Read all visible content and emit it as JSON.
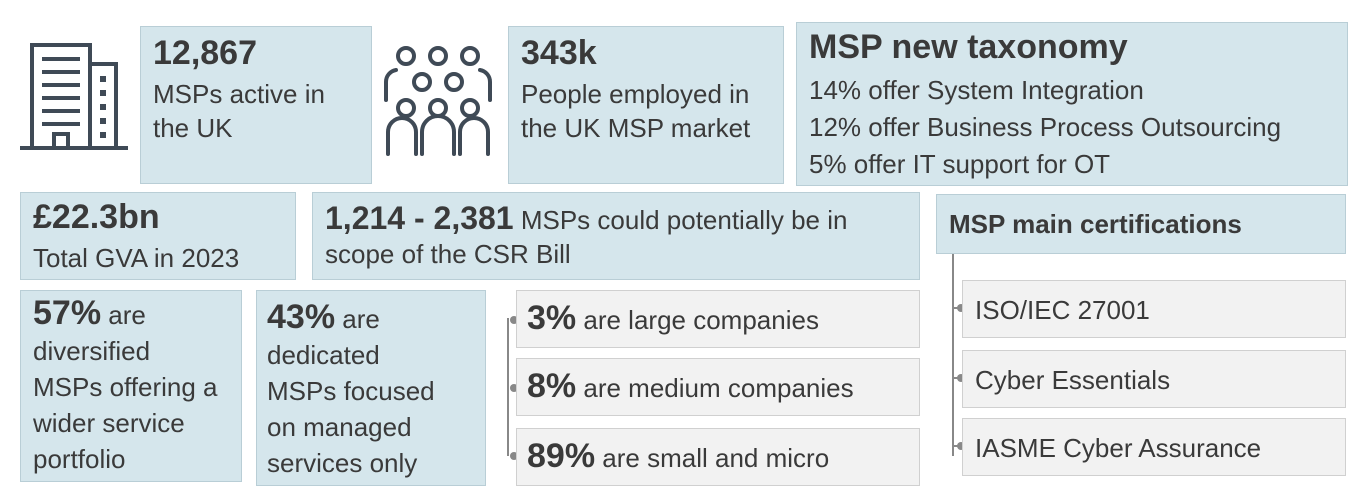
{
  "stat_mspsactive": {
    "value": "12,867",
    "line1": "MSPs active in",
    "line2": "the UK"
  },
  "stat_people": {
    "value": "343k",
    "line1": "People employed in",
    "line2": "the UK MSP market"
  },
  "taxonomy": {
    "title": "MSP new taxonomy",
    "items": [
      "14% offer System Integration",
      "12% offer Business Process Outsourcing",
      "5% offer IT support for OT"
    ]
  },
  "gva": {
    "value": "£22.3bn",
    "label": "Total GVA in 2023"
  },
  "csr": {
    "value": "1,214 - 2,381",
    "text1": "MSPs could potentially be in",
    "text2": "scope of the CSR Bill"
  },
  "certifications": {
    "title": "MSP main certifications",
    "items": [
      "ISO/IEC 27001",
      "Cyber Essentials",
      "IASME Cyber Assurance"
    ]
  },
  "diversified": {
    "value": "57%",
    "first": "are",
    "lines": [
      "diversified",
      "MSPs offering a",
      "wider service",
      "portfolio"
    ]
  },
  "dedicated": {
    "value": "43%",
    "first": "are",
    "lines": [
      "dedicated",
      "MSPs focused",
      "on managed",
      "services only"
    ]
  },
  "sizes": [
    {
      "value": "3%",
      "label": "are large companies"
    },
    {
      "value": "8%",
      "label": "are medium companies"
    },
    {
      "value": "89%",
      "label": "are small and micro"
    }
  ],
  "icons": {
    "building": "building-icon",
    "people": "people-icon"
  },
  "colors": {
    "box_blue": "#d5e6ec",
    "box_grey": "#f2f2f2",
    "icon": "#3f4a56",
    "text": "#3a3a3a"
  }
}
